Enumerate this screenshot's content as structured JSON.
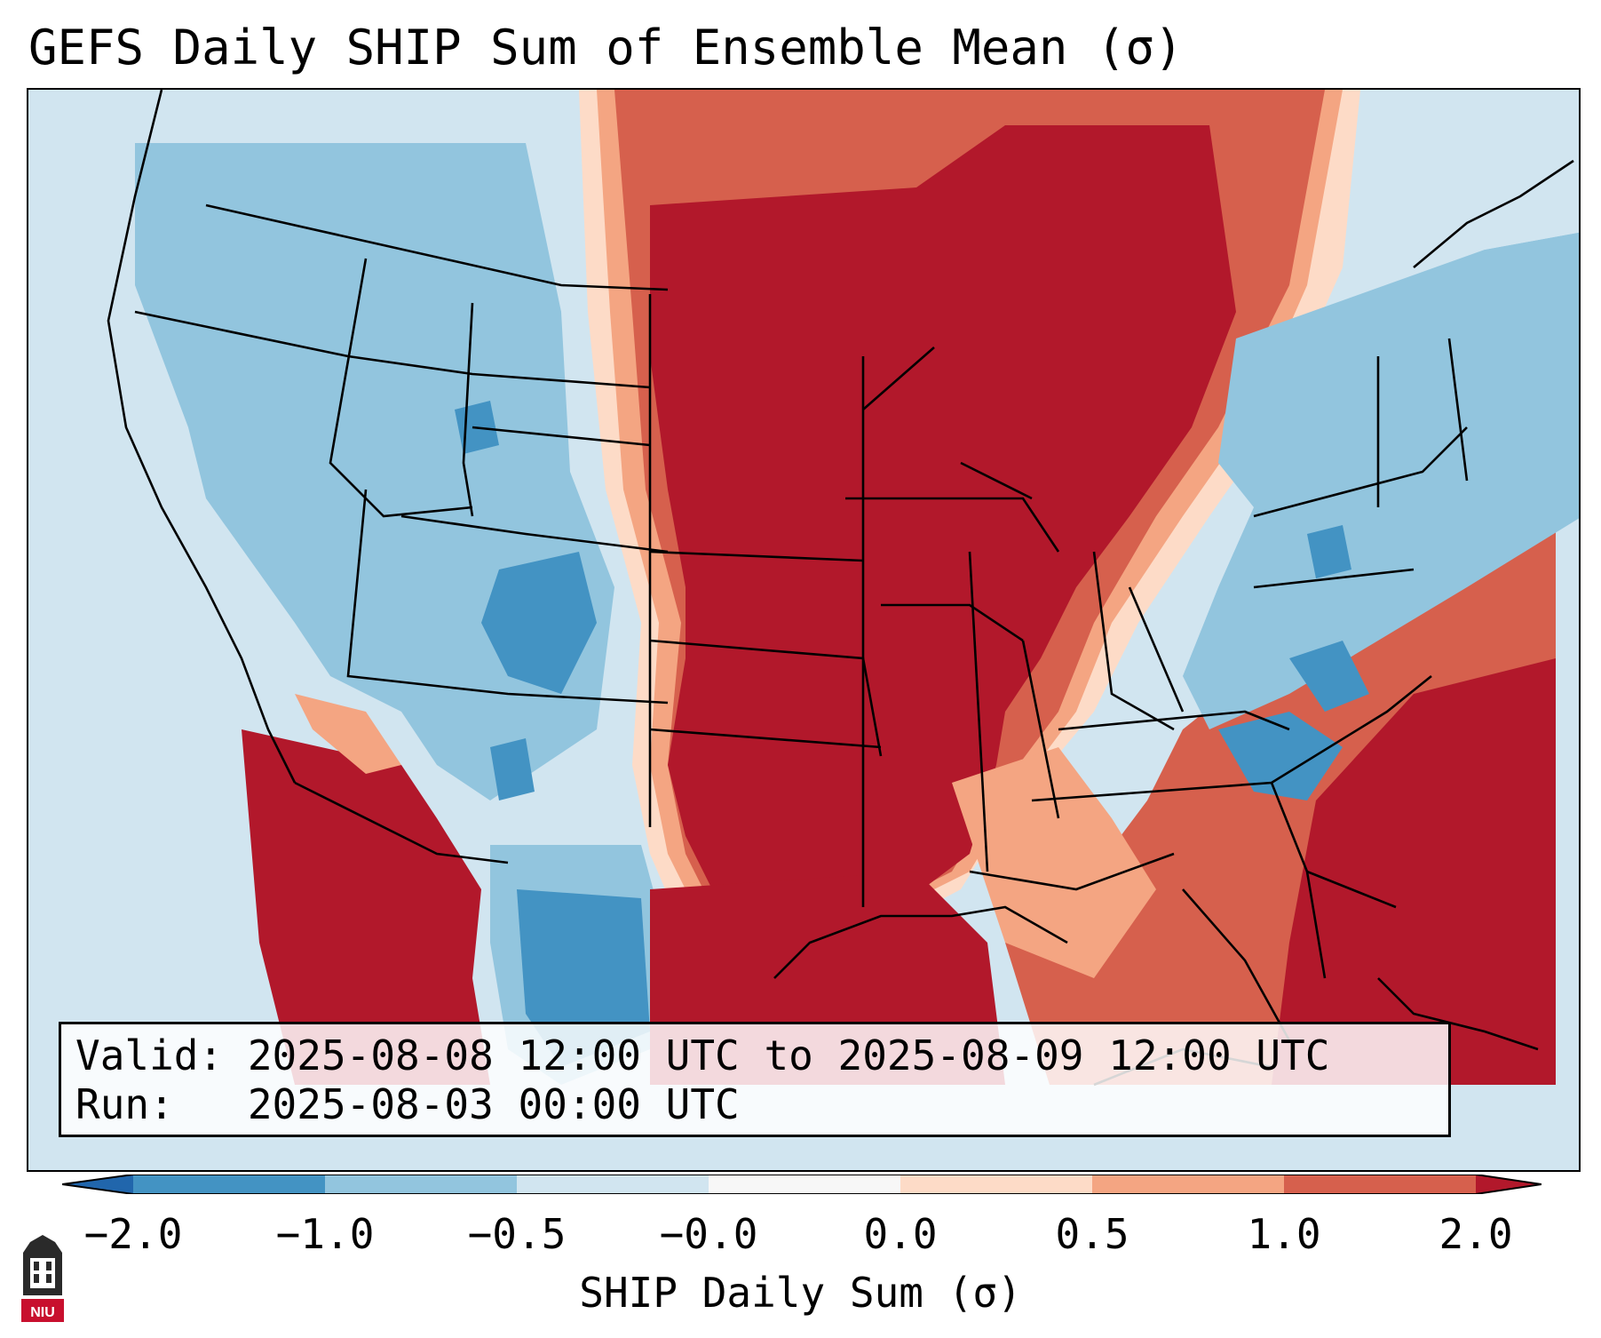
{
  "title": "GEFS Daily SHIP Sum of Ensemble Mean (σ)",
  "info": {
    "valid_line": "Valid: 2025-08-08 12:00 UTC to 2025-08-09 12:00 UTC",
    "run_line": "Run:   2025-08-03 00:00 UTC"
  },
  "colorbar": {
    "label": "SHIP Daily Sum (σ)",
    "ticks": [
      "−2.0",
      "−1.0",
      "−0.5",
      "−0.0",
      "0.0",
      "0.5",
      "1.0",
      "2.0"
    ],
    "colors": [
      "#4393c3",
      "#92c5de",
      "#d1e5f0",
      "#fddbc7",
      "#f4a582",
      "#d6604d",
      "#b2182b"
    ],
    "extend": "both"
  },
  "map": {
    "colors": {
      "ocean_background": "#d4e6f1",
      "strong_negative": "#4393c3",
      "negative": "#92c5de",
      "weak_negative": "#d1e5f0",
      "weak_positive": "#fddbc7",
      "positive": "#f4a582",
      "strong_positive": "#d6604d",
      "very_strong_positive": "#b2182b"
    },
    "icons": [
      "state-borders",
      "coastlines"
    ]
  },
  "logo": {
    "text": "NIU",
    "icon": "university-logo-icon"
  }
}
